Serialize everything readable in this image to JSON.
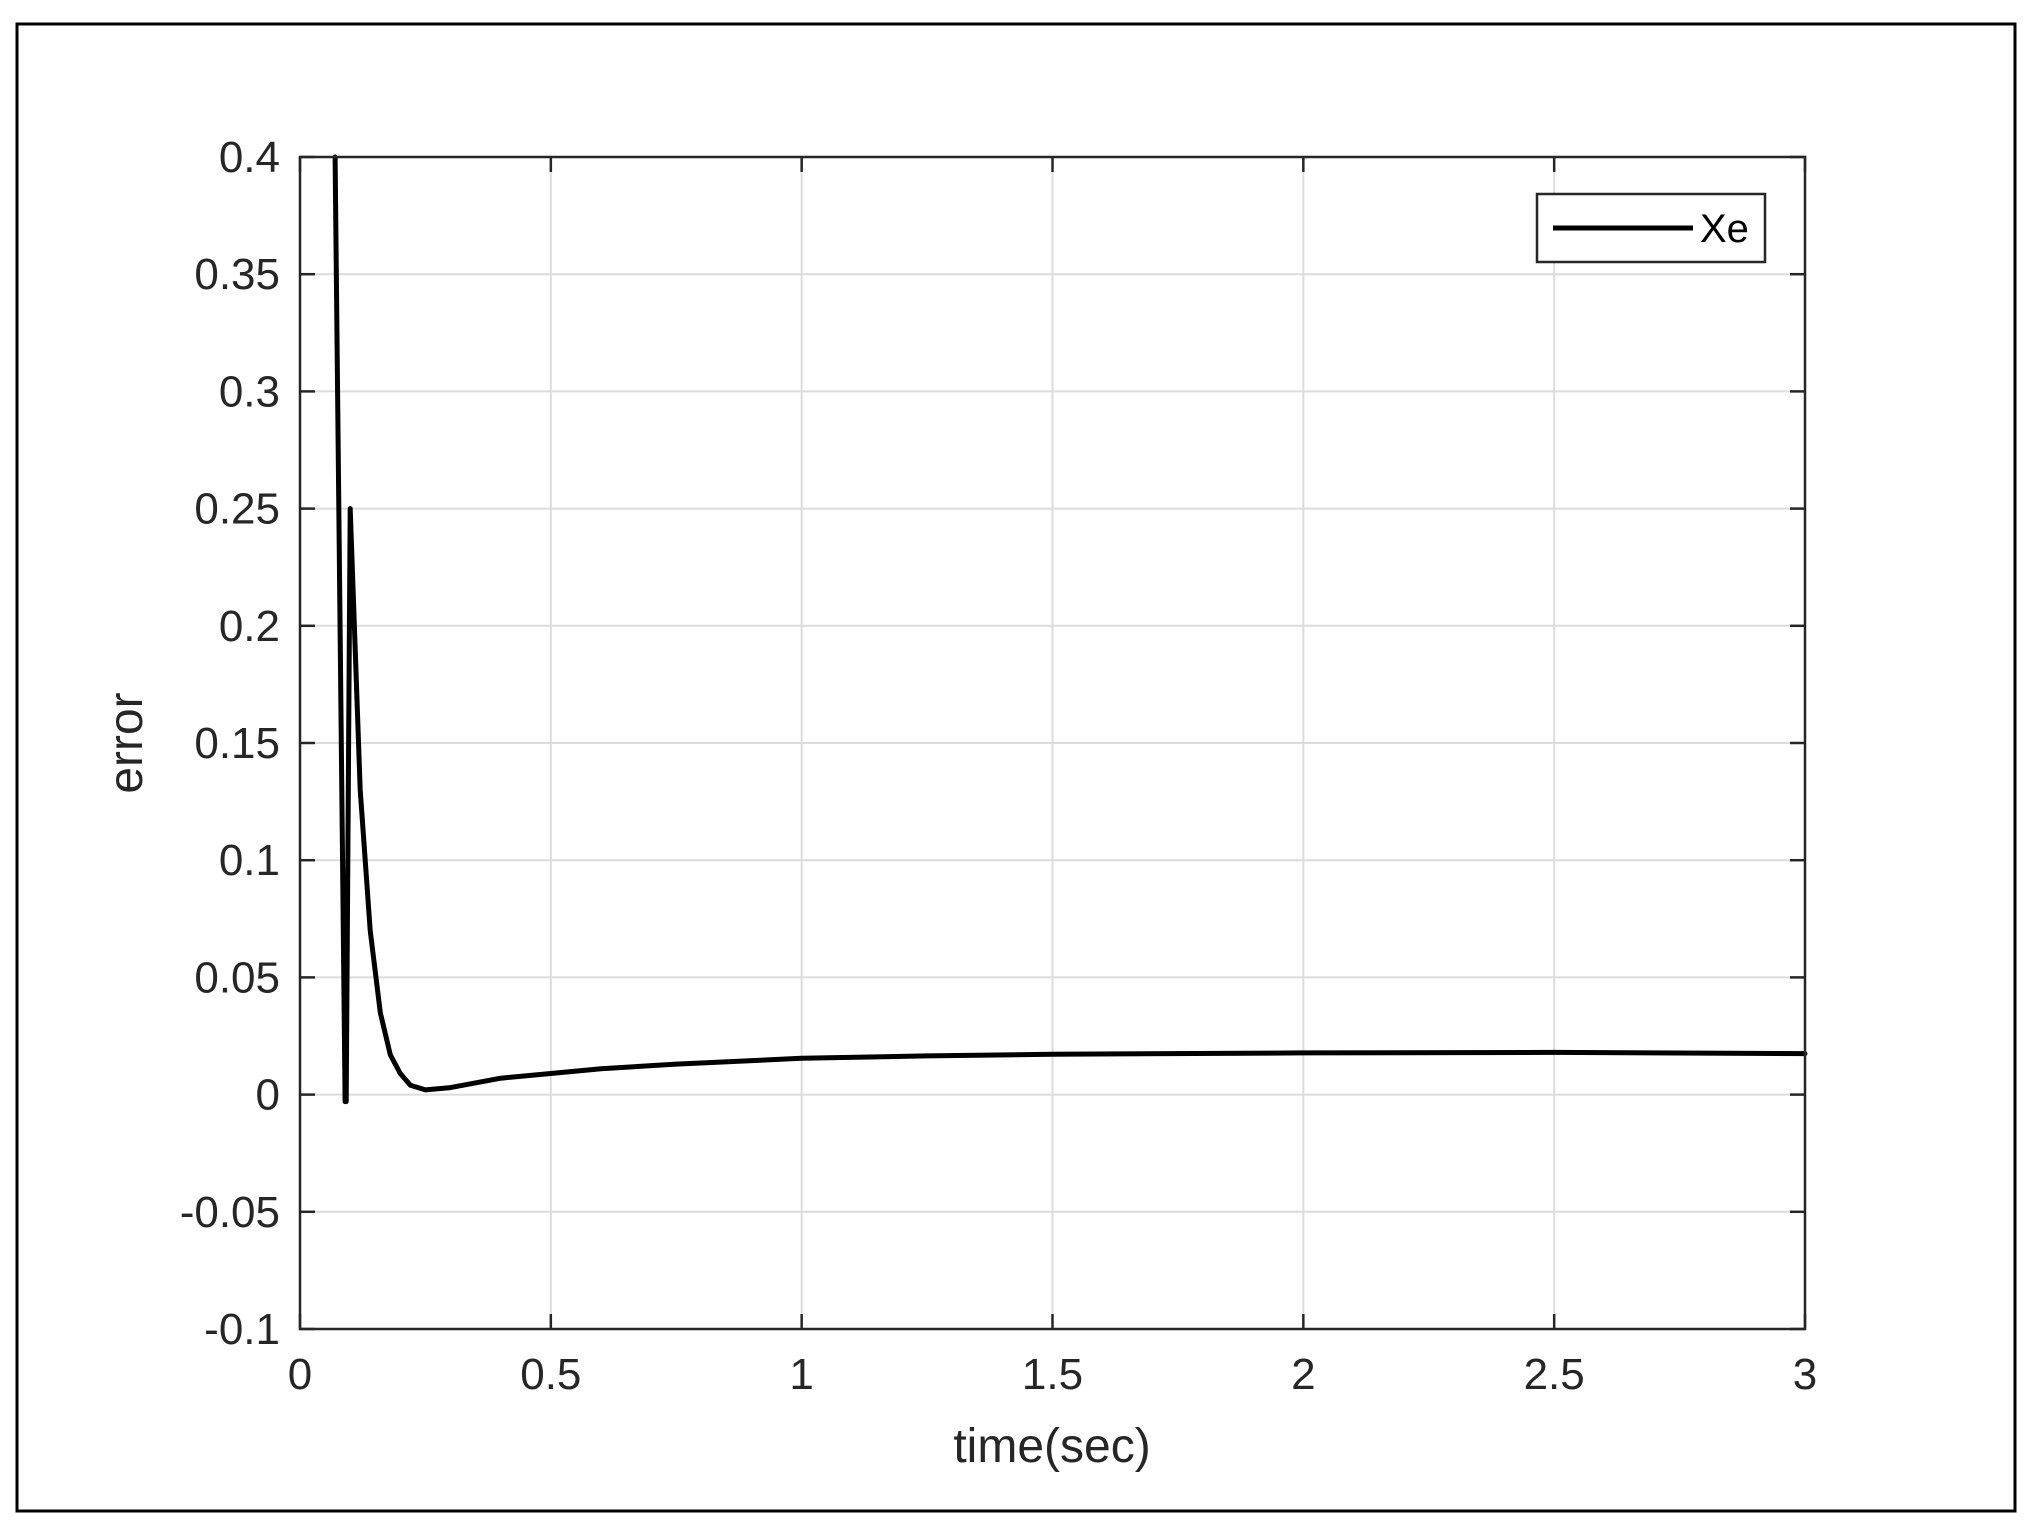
{
  "chart_data": {
    "type": "line",
    "title": "",
    "xlabel": "time(sec)",
    "ylabel": "error",
    "xlim": [
      0,
      3
    ],
    "ylim": [
      -0.1,
      0.4
    ],
    "xticks": [
      0,
      0.5,
      1,
      1.5,
      2,
      2.5,
      3
    ],
    "xtick_labels": [
      "0",
      "0.5",
      "1",
      "1.5",
      "2",
      "2.5",
      "3"
    ],
    "yticks": [
      -0.1,
      -0.05,
      0,
      0.05,
      0.1,
      0.15,
      0.2,
      0.25,
      0.3,
      0.35,
      0.4
    ],
    "ytick_labels": [
      "-0.1",
      "-0.05",
      "0",
      "0.05",
      "0.1",
      "0.15",
      "0.2",
      "0.25",
      "0.3",
      "0.35",
      "0.4"
    ],
    "grid": true,
    "legend_position": "top-right",
    "series": [
      {
        "name": "Xe",
        "color": "#000000",
        "x": [
          0.07,
          0.09,
          0.092,
          0.1,
          0.105,
          0.12,
          0.14,
          0.16,
          0.18,
          0.2,
          0.22,
          0.25,
          0.3,
          0.4,
          0.5,
          0.6,
          0.75,
          1.0,
          1.25,
          1.5,
          2.0,
          2.5,
          3.0
        ],
        "y": [
          0.4,
          -0.003,
          -0.003,
          0.25,
          0.22,
          0.13,
          0.07,
          0.035,
          0.017,
          0.009,
          0.004,
          0.002,
          0.003,
          0.007,
          0.009,
          0.011,
          0.013,
          0.0155,
          0.0165,
          0.0172,
          0.0178,
          0.018,
          0.0175
        ]
      }
    ]
  }
}
